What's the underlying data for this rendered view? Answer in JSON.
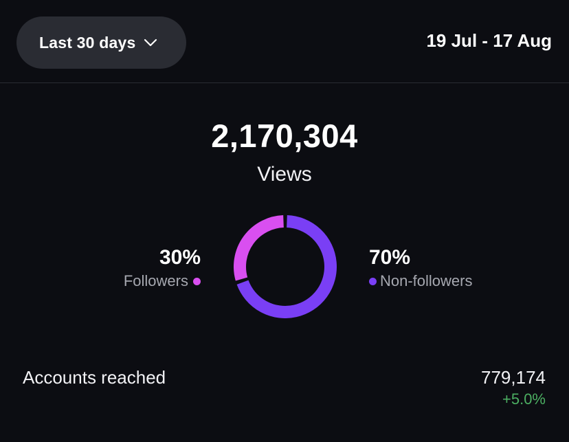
{
  "header": {
    "range_label": "Last 30 days",
    "date_range": "19 Jul - 17 Aug"
  },
  "views": {
    "value": "2,170,304",
    "label": "Views"
  },
  "breakdown": {
    "followers": {
      "percent_text": "30%",
      "label": "Followers",
      "fraction": 0.3,
      "color": "#d94ff0"
    },
    "non_followers": {
      "percent_text": "70%",
      "label": "Non-followers",
      "fraction": 0.7,
      "color": "#7a3ff5"
    }
  },
  "accounts_reached": {
    "label": "Accounts reached",
    "value": "779,174",
    "change": "+5.0%",
    "change_color": "#4caf62"
  },
  "colors": {
    "background": "#0c0d12",
    "button_bg": "#2a2c33",
    "track": "#0c0d12"
  },
  "icons": {
    "range_chevron": "chevron-down-icon"
  }
}
